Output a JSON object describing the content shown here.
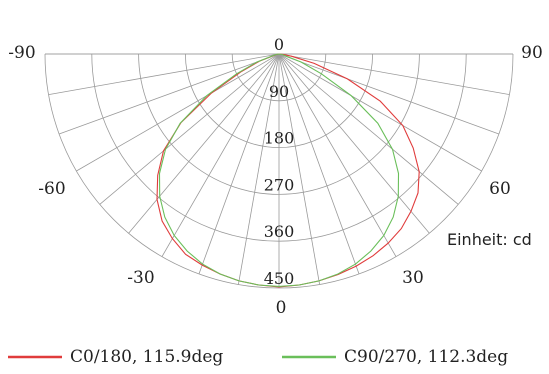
{
  "chart_data": {
    "type": "polar",
    "title": "",
    "unit_label": "Einheit: cd",
    "radial_ticks": [
      "0",
      "90",
      "180",
      "270",
      "360",
      "450"
    ],
    "radial_max": 450,
    "angle_labels": [
      {
        "angle": -90,
        "text": "-90"
      },
      {
        "angle": 90,
        "text": "90"
      },
      {
        "angle": -60,
        "text": "-60"
      },
      {
        "angle": 60,
        "text": "60"
      },
      {
        "angle": -30,
        "text": "-30"
      },
      {
        "angle": 30,
        "text": "30"
      },
      {
        "angle": 0,
        "text": "0"
      }
    ],
    "series": [
      {
        "name": "C0/180, 115.9deg",
        "color": "#e03c3c",
        "points": [
          [
            -90,
            0
          ],
          [
            -80,
            5
          ],
          [
            -70,
            40
          ],
          [
            -65,
            80
          ],
          [
            -60,
            150
          ],
          [
            -55,
            230
          ],
          [
            -50,
            290
          ],
          [
            -45,
            330
          ],
          [
            -40,
            365
          ],
          [
            -35,
            392
          ],
          [
            -30,
            410
          ],
          [
            -25,
            425
          ],
          [
            -20,
            432
          ],
          [
            -15,
            438
          ],
          [
            -10,
            443
          ],
          [
            -5,
            446
          ],
          [
            0,
            448
          ],
          [
            5,
            446
          ],
          [
            10,
            443
          ],
          [
            15,
            439
          ],
          [
            20,
            434
          ],
          [
            25,
            428
          ],
          [
            30,
            420
          ],
          [
            35,
            410
          ],
          [
            40,
            395
          ],
          [
            45,
            378
          ],
          [
            50,
            352
          ],
          [
            55,
            315
          ],
          [
            60,
            275
          ],
          [
            65,
            215
          ],
          [
            70,
            140
          ],
          [
            75,
            70
          ],
          [
            80,
            25
          ],
          [
            85,
            8
          ],
          [
            90,
            0
          ]
        ]
      },
      {
        "name": "C90/270, 112.3deg",
        "color": "#6abf5a",
        "points": [
          [
            -90,
            0
          ],
          [
            -80,
            6
          ],
          [
            -70,
            45
          ],
          [
            -65,
            90
          ],
          [
            -60,
            160
          ],
          [
            -55,
            232
          ],
          [
            -50,
            285
          ],
          [
            -45,
            325
          ],
          [
            -40,
            357
          ],
          [
            -35,
            383
          ],
          [
            -30,
            403
          ],
          [
            -25,
            418
          ],
          [
            -20,
            430
          ],
          [
            -15,
            438
          ],
          [
            -10,
            443
          ],
          [
            -5,
            446
          ],
          [
            0,
            447
          ],
          [
            5,
            446
          ],
          [
            10,
            443
          ],
          [
            15,
            438
          ],
          [
            20,
            430
          ],
          [
            25,
            418
          ],
          [
            30,
            403
          ],
          [
            35,
            383
          ],
          [
            40,
            357
          ],
          [
            45,
            325
          ],
          [
            50,
            285
          ],
          [
            55,
            232
          ],
          [
            60,
            160
          ],
          [
            65,
            90
          ],
          [
            70,
            45
          ],
          [
            80,
            6
          ],
          [
            90,
            0
          ]
        ]
      }
    ],
    "legend_placement": "bottom"
  }
}
